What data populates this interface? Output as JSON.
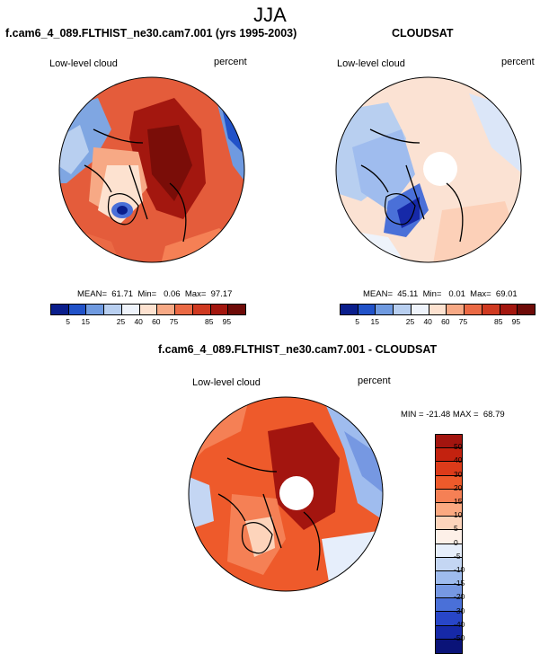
{
  "figure_title": "JJA",
  "panels": [
    {
      "title": "f.cam6_4_089.FLTHIST_ne30.cam7.001 (yrs 1995-2003)",
      "left_label": "Low-level cloud",
      "right_label": "percent",
      "stats": "MEAN=  61.71  Min=   0.06  Max=  97.17"
    },
    {
      "title": "CLOUDSAT",
      "left_label": "Low-level cloud",
      "right_label": "percent",
      "stats": "MEAN=  45.11  Min=   0.01  Max=  69.01"
    },
    {
      "title": "f.cam6_4_089.FLTHIST_ne30.cam7.001 - CLOUDSAT",
      "left_label": "Low-level cloud",
      "right_label": "percent",
      "stats": "MIN = -21.48 MAX =  68.79"
    }
  ],
  "abs_colorbar": {
    "labels": [
      "5",
      "15",
      "25",
      "40",
      "60",
      "75",
      "85",
      "95"
    ],
    "colors": [
      "#0a1e8c",
      "#2152c8",
      "#6f9ae0",
      "#b8cff0",
      "#eef3fb",
      "#fde2d0",
      "#f7a985",
      "#eb6a45",
      "#cf3a21",
      "#a3170f",
      "#6e0b08"
    ]
  },
  "diff_colorbar": {
    "labels": [
      "50",
      "40",
      "30",
      "20",
      "15",
      "10",
      "5",
      "0",
      "-5",
      "-10",
      "-15",
      "-20",
      "-30",
      "-40",
      "-50"
    ],
    "colors": [
      "#a3150f",
      "#c3220f",
      "#dc3b1a",
      "#ee5a2b",
      "#f58055",
      "#fba981",
      "#fdd4bb",
      "#fdf0e8",
      "#e6eefb",
      "#c4d6f3",
      "#9fbcee",
      "#7698e2",
      "#4a70d8",
      "#2846c8",
      "#1629a8",
      "#0a1378"
    ]
  }
}
